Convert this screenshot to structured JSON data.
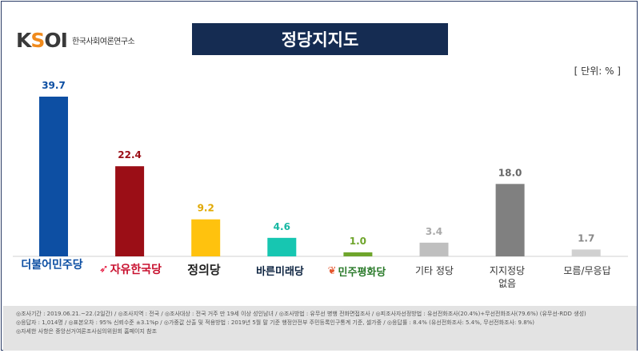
{
  "logo": {
    "brand": "KSOI",
    "subtitle": "한국사회여론연구소"
  },
  "title": "정당지지도",
  "unit": "[ 단위: % ]",
  "chart_data": {
    "type": "bar",
    "categories": [
      "더불어민주당",
      "자유한국당",
      "정의당",
      "바른미래당",
      "민주평화당",
      "기타 정당",
      "지지정당 없음",
      "모름/무응답"
    ],
    "values": [
      39.7,
      22.4,
      9.2,
      4.6,
      1.0,
      3.4,
      18.0,
      1.7
    ],
    "colors": [
      "#0d4fa3",
      "#9b0e16",
      "#ffc20e",
      "#17c6b1",
      "#6fa52c",
      "#bfbfbf",
      "#808080",
      "#d0d0d0"
    ],
    "label_colors": [
      "#0d4fa3",
      "#9b0e16",
      "#e0a800",
      "#17b8a3",
      "#6fa52c",
      "#aaaaaa",
      "#666666",
      "#888888"
    ],
    "value_labels": [
      "39.7",
      "22.4",
      "9.2",
      "4.6",
      "1.0",
      "3.4",
      "18.0",
      "1.7"
    ],
    "ylim": [
      0,
      39.7
    ]
  },
  "party_labels": {
    "p1": "더불어민주당",
    "p2": "자유한국당",
    "p3": "정의당",
    "p4": "바른미래당",
    "p5": "민주평화당",
    "other": "기타 정당",
    "none1": "지지정당",
    "none2": "없음",
    "dk": "모름/무응답"
  },
  "footer": {
    "line1": "◎조사기간 : 2019.06.21.~22.(2일간) / ◎조사지역 : 전국 / ◎조사대상 : 전국 거주 만 19세 이상 성인남녀 / ◎조사방법 : 유무선 병행 전화면접조사 / ◎피조사자선정방법 : 유선전화조사(20.4%)+무선전화조사(79.6%) (유무선-RDD 생성)",
    "line2": "◎응답자 : 1,014명 / ◎표본오차 : 95% 신뢰수준 ±3.1%p / ◎가중값 산출 및 적용방법 : 2019년 5월 말 기준 행정안전부 주민등록인구통계 기준, 셀가중 / ◎응답률 : 8.4% (유선전화조사: 5.4%, 무선전화조사: 9.8%)",
    "line3": "◎자세한 사항은 중앙선거여론조사심의위원회 홈페이지 참조"
  }
}
